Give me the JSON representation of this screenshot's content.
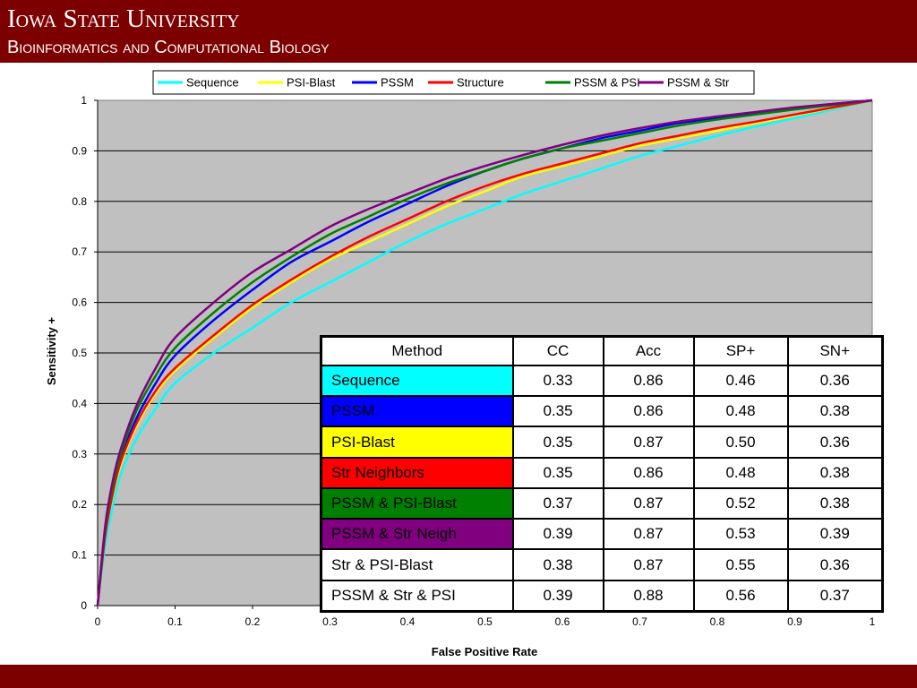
{
  "header": {
    "university": "Iowa State University",
    "department": "Bioinformatics and Computational Biology",
    "bg_color": "#7d0000"
  },
  "chart_data": {
    "type": "line",
    "xlabel": "False Positive Rate",
    "ylabel": "Sensitivity +",
    "xlim": [
      0,
      1
    ],
    "ylim": [
      0,
      1
    ],
    "xticks": [
      "0",
      "0.1",
      "0.2",
      "0.3",
      "0.4",
      "0.5",
      "0.6",
      "0.7",
      "0.8",
      "0.9",
      "1"
    ],
    "yticks": [
      "0",
      "0.1",
      "0.2",
      "0.3",
      "0.4",
      "0.5",
      "0.6",
      "0.7",
      "0.8",
      "0.9",
      "1"
    ],
    "grid": "horizontal",
    "plot_bg": "#c0c0c0",
    "legend_position": "top",
    "x": [
      0,
      0.01,
      0.02,
      0.03,
      0.05,
      0.075,
      0.1,
      0.15,
      0.2,
      0.25,
      0.3,
      0.35,
      0.4,
      0.45,
      0.5,
      0.55,
      0.6,
      0.65,
      0.7,
      0.75,
      0.8,
      0.85,
      0.9,
      0.95,
      1
    ],
    "series": [
      {
        "name": "Sequence",
        "color": "#00ffff",
        "values": [
          0,
          0.12,
          0.2,
          0.26,
          0.33,
          0.39,
          0.44,
          0.5,
          0.55,
          0.6,
          0.64,
          0.68,
          0.72,
          0.755,
          0.785,
          0.815,
          0.84,
          0.865,
          0.89,
          0.91,
          0.93,
          0.948,
          0.965,
          0.982,
          1
        ]
      },
      {
        "name": "PSI-Blast",
        "color": "#ffff00",
        "values": [
          0,
          0.14,
          0.22,
          0.28,
          0.355,
          0.42,
          0.465,
          0.53,
          0.59,
          0.64,
          0.685,
          0.72,
          0.755,
          0.79,
          0.82,
          0.85,
          0.87,
          0.89,
          0.91,
          0.925,
          0.94,
          0.955,
          0.97,
          0.985,
          1
        ]
      },
      {
        "name": "PSSM",
        "color": "#0000ff",
        "values": [
          0,
          0.15,
          0.23,
          0.29,
          0.37,
          0.44,
          0.495,
          0.565,
          0.625,
          0.68,
          0.72,
          0.76,
          0.795,
          0.83,
          0.86,
          0.885,
          0.905,
          0.925,
          0.94,
          0.955,
          0.965,
          0.975,
          0.985,
          0.993,
          1
        ]
      },
      {
        "name": "Structure",
        "color": "#ff0000",
        "values": [
          0,
          0.14,
          0.225,
          0.285,
          0.36,
          0.425,
          0.47,
          0.535,
          0.595,
          0.645,
          0.69,
          0.73,
          0.765,
          0.8,
          0.83,
          0.855,
          0.875,
          0.895,
          0.915,
          0.93,
          0.945,
          0.958,
          0.972,
          0.986,
          1
        ]
      },
      {
        "name": "PSSM & PSI",
        "color": "#008000",
        "values": [
          0,
          0.155,
          0.24,
          0.3,
          0.385,
          0.455,
          0.51,
          0.58,
          0.64,
          0.69,
          0.735,
          0.77,
          0.805,
          0.835,
          0.86,
          0.885,
          0.905,
          0.92,
          0.935,
          0.95,
          0.962,
          0.972,
          0.982,
          0.991,
          1
        ]
      },
      {
        "name": "PSSM & Str",
        "color": "#800080",
        "values": [
          0,
          0.16,
          0.25,
          0.31,
          0.395,
          0.47,
          0.53,
          0.6,
          0.66,
          0.705,
          0.75,
          0.785,
          0.815,
          0.845,
          0.87,
          0.892,
          0.912,
          0.93,
          0.945,
          0.958,
          0.968,
          0.977,
          0.986,
          0.993,
          1
        ]
      }
    ]
  },
  "table": {
    "headers": [
      "Method",
      "CC",
      "Acc",
      "SP+",
      "SN+"
    ],
    "rows": [
      {
        "method": "Sequence",
        "cc": "0.33",
        "acc": "0.86",
        "sp": "0.46",
        "sn": "0.36",
        "bg": "#00ffff",
        "fg": "#000000"
      },
      {
        "method": "PSSM",
        "cc": "0.35",
        "acc": "0.86",
        "sp": "0.48",
        "sn": "0.38",
        "bg": "#0000ff",
        "fg": "#000000"
      },
      {
        "method": "PSI-Blast",
        "cc": "0.35",
        "acc": "0.87",
        "sp": "0.50",
        "sn": "0.36",
        "bg": "#ffff00",
        "fg": "#000000"
      },
      {
        "method": "Str Neighbors",
        "cc": "0.35",
        "acc": "0.86",
        "sp": "0.48",
        "sn": "0.38",
        "bg": "#ff0000",
        "fg": "#000000"
      },
      {
        "method": "PSSM & PSI-Blast",
        "cc": "0.37",
        "acc": "0.87",
        "sp": "0.52",
        "sn": "0.38",
        "bg": "#008000",
        "fg": "#000000"
      },
      {
        "method": "PSSM & Str Neigh",
        "cc": "0.39",
        "acc": "0.87",
        "sp": "0.53",
        "sn": "0.39",
        "bg": "#800080",
        "fg": "#000000"
      },
      {
        "method": "Str & PSI-Blast",
        "cc": "0.38",
        "acc": "0.87",
        "sp": "0.55",
        "sn": "0.36",
        "bg": "#ffffff",
        "fg": "#000000"
      },
      {
        "method": "PSSM & Str & PSI",
        "cc": "0.39",
        "acc": "0.88",
        "sp": "0.56",
        "sn": "0.37",
        "bg": "#ffffff",
        "fg": "#000000"
      }
    ]
  }
}
